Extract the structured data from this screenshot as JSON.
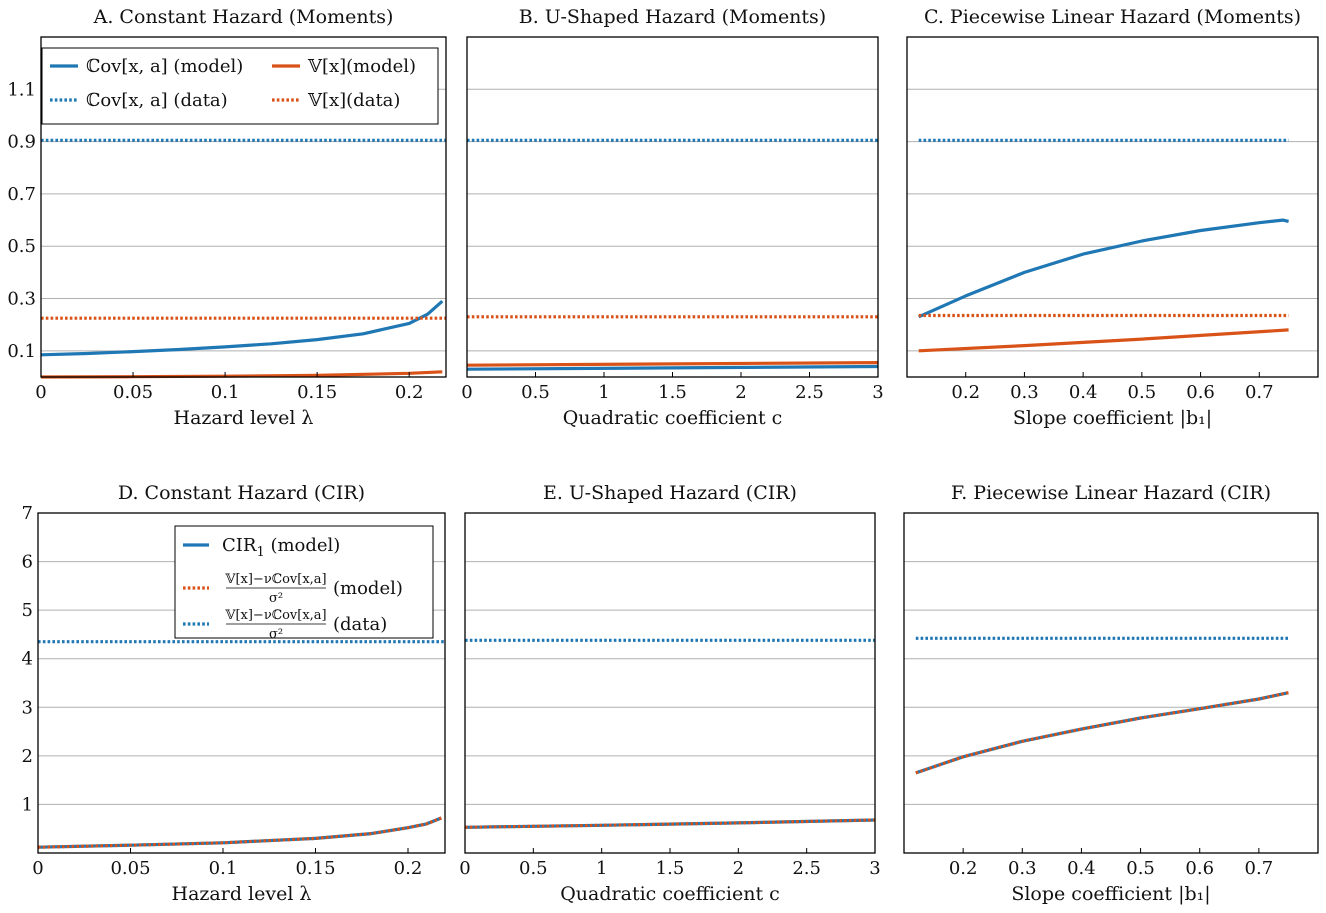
{
  "colors": {
    "blue": "#1f77b4",
    "orange": "#d95319",
    "grid": "#b0b0b0",
    "frame": "#000000"
  },
  "legend_top": [
    {
      "label": "ℂov[x, a] (model)",
      "style": "solid",
      "color": "#1f77b4"
    },
    {
      "label": "𝕍[x](model)",
      "style": "solid",
      "color": "#d95319"
    },
    {
      "label": "ℂov[x, a] (data)",
      "style": "dotted",
      "color": "#1f77b4"
    },
    {
      "label": "𝕍[x](data)",
      "style": "dotted",
      "color": "#d95319"
    }
  ],
  "legend_bottom": [
    {
      "label": "CIR",
      "sub": "1",
      "suffix": " (model)",
      "style": "solid",
      "color": "#1f77b4"
    },
    {
      "numerator": "𝕍[x]−νℂov[x,a]",
      "denominator": "σ²",
      "suffix": "(model)",
      "style": "dotted",
      "color": "#d95319"
    },
    {
      "numerator": "𝕍[x]−νℂov[x,a]",
      "denominator": "σ²",
      "suffix": "(data)",
      "style": "dotted",
      "color": "#1f77b4"
    }
  ],
  "chart_data": [
    {
      "id": "A",
      "type": "line",
      "title": "A. Constant Hazard (Moments)",
      "xlabel": "Hazard level λ",
      "xlim": [
        0,
        0.22
      ],
      "ylim": [
        0,
        1.3
      ],
      "xticks": [
        0,
        0.05,
        0.1,
        0.15,
        0.2
      ],
      "xtick_labels": [
        "0",
        "0.05",
        "0.1",
        "0.15",
        "0.2"
      ],
      "yticks": [
        0.1,
        0.3,
        0.5,
        0.7,
        0.9,
        1.1
      ],
      "ytick_labels": [
        "0.1",
        "0.3",
        "0.5",
        "0.7",
        "0.9",
        "1.1"
      ],
      "grid": true,
      "legend": "legend_top",
      "series": [
        {
          "name": "ℂov[x, a] (model)",
          "style": "solid",
          "color": "#1f77b4",
          "x": [
            0,
            0.025,
            0.05,
            0.075,
            0.1,
            0.125,
            0.15,
            0.175,
            0.2,
            0.21,
            0.218
          ],
          "y": [
            0.085,
            0.09,
            0.097,
            0.105,
            0.115,
            0.127,
            0.143,
            0.165,
            0.205,
            0.24,
            0.29
          ]
        },
        {
          "name": "𝕍[x](model)",
          "style": "solid",
          "color": "#d95319",
          "x": [
            0,
            0.05,
            0.1,
            0.15,
            0.2,
            0.218
          ],
          "y": [
            0.0,
            0.001,
            0.003,
            0.006,
            0.014,
            0.02
          ]
        },
        {
          "name": "ℂov[x, a] (data)",
          "style": "dotted",
          "color": "#1f77b4",
          "x": [
            0,
            0.22
          ],
          "y": [
            0.905,
            0.905
          ]
        },
        {
          "name": "𝕍[x](data)",
          "style": "dotted",
          "color": "#d95319",
          "x": [
            0,
            0.22
          ],
          "y": [
            0.225,
            0.225
          ]
        }
      ]
    },
    {
      "id": "B",
      "type": "line",
      "title": "B. U-Shaped Hazard (Moments)",
      "xlabel": "Quadratic coefficient c",
      "xlim": [
        0,
        3
      ],
      "ylim": [
        0,
        1.3
      ],
      "xticks": [
        0,
        0.5,
        1,
        1.5,
        2,
        2.5,
        3
      ],
      "xtick_labels": [
        "0",
        "0.5",
        "1",
        "1.5",
        "2",
        "2.5",
        "3"
      ],
      "yticks": [
        0.1,
        0.3,
        0.5,
        0.7,
        0.9,
        1.1
      ],
      "ytick_labels": [],
      "grid": true,
      "legend": null,
      "series": [
        {
          "name": "ℂov[x, a] (model)",
          "style": "solid",
          "color": "#1f77b4",
          "x": [
            0,
            3
          ],
          "y": [
            0.03,
            0.04
          ]
        },
        {
          "name": "𝕍[x](model)",
          "style": "solid",
          "color": "#d95319",
          "x": [
            0,
            3
          ],
          "y": [
            0.045,
            0.055
          ]
        },
        {
          "name": "ℂov[x, a] (data)",
          "style": "dotted",
          "color": "#1f77b4",
          "x": [
            0,
            3
          ],
          "y": [
            0.905,
            0.905
          ]
        },
        {
          "name": "𝕍[x](data)",
          "style": "dotted",
          "color": "#d95319",
          "x": [
            0,
            3
          ],
          "y": [
            0.23,
            0.23
          ]
        }
      ]
    },
    {
      "id": "C",
      "type": "line",
      "title": "C. Piecewise Linear Hazard (Moments)",
      "xlabel": "Slope coefficient |b₁|",
      "xlim": [
        0.1,
        0.8
      ],
      "ylim": [
        0,
        1.3
      ],
      "xticks": [
        0.2,
        0.3,
        0.4,
        0.5,
        0.6,
        0.7
      ],
      "xtick_labels": [
        "0.2",
        "0.3",
        "0.4",
        "0.5",
        "0.6",
        "0.7"
      ],
      "yticks": [
        0.1,
        0.3,
        0.5,
        0.7,
        0.9,
        1.1
      ],
      "ytick_labels": [],
      "grid": true,
      "legend": null,
      "series": [
        {
          "name": "ℂov[x, a] (model)",
          "style": "solid",
          "color": "#1f77b4",
          "x": [
            0.12,
            0.2,
            0.3,
            0.4,
            0.5,
            0.6,
            0.7,
            0.74,
            0.75
          ],
          "y": [
            0.23,
            0.31,
            0.4,
            0.47,
            0.52,
            0.56,
            0.59,
            0.6,
            0.595
          ]
        },
        {
          "name": "𝕍[x](model)",
          "style": "solid",
          "color": "#d95319",
          "x": [
            0.12,
            0.3,
            0.5,
            0.75
          ],
          "y": [
            0.1,
            0.12,
            0.145,
            0.18
          ]
        },
        {
          "name": "ℂov[x, a] (data)",
          "style": "dotted",
          "color": "#1f77b4",
          "x": [
            0.12,
            0.75
          ],
          "y": [
            0.905,
            0.905
          ]
        },
        {
          "name": "𝕍[x](data)",
          "style": "dotted",
          "color": "#d95319",
          "x": [
            0.12,
            0.75
          ],
          "y": [
            0.235,
            0.235
          ]
        }
      ]
    },
    {
      "id": "D",
      "type": "line",
      "title": "D. Constant Hazard (CIR)",
      "xlabel": "Hazard level λ",
      "xlim": [
        0,
        0.22
      ],
      "ylim": [
        0,
        7
      ],
      "xticks": [
        0,
        0.05,
        0.1,
        0.15,
        0.2
      ],
      "xtick_labels": [
        "0",
        "0.05",
        "0.1",
        "0.15",
        "0.2"
      ],
      "yticks": [
        1,
        2,
        3,
        4,
        5,
        6,
        7
      ],
      "ytick_labels": [
        "1",
        "2",
        "3",
        "4",
        "5",
        "6",
        "7"
      ],
      "grid": true,
      "legend": "legend_bottom",
      "series": [
        {
          "name": "CIR₁ (model)",
          "style": "solid",
          "color": "#1f77b4",
          "x": [
            0,
            0.05,
            0.1,
            0.15,
            0.18,
            0.2,
            0.21,
            0.218
          ],
          "y": [
            0.12,
            0.16,
            0.21,
            0.3,
            0.4,
            0.52,
            0.6,
            0.72
          ]
        },
        {
          "name": "(𝕍[x]−νℂov[x,a])/σ² (model)",
          "style": "dotted",
          "color": "#d95319",
          "x": [
            0,
            0.05,
            0.1,
            0.15,
            0.18,
            0.2,
            0.21,
            0.218
          ],
          "y": [
            0.12,
            0.16,
            0.21,
            0.3,
            0.4,
            0.52,
            0.6,
            0.72
          ]
        },
        {
          "name": "(𝕍[x]−νℂov[x,a])/σ² (data)",
          "style": "dotted",
          "color": "#1f77b4",
          "x": [
            0,
            0.22
          ],
          "y": [
            4.35,
            4.35
          ]
        }
      ]
    },
    {
      "id": "E",
      "type": "line",
      "title": "E. U-Shaped Hazard (CIR)",
      "xlabel": "Quadratic coefficient c",
      "xlim": [
        0,
        3
      ],
      "ylim": [
        0,
        7
      ],
      "xticks": [
        0,
        0.5,
        1,
        1.5,
        2,
        2.5,
        3
      ],
      "xtick_labels": [
        "0",
        "0.5",
        "1",
        "1.5",
        "2",
        "2.5",
        "3"
      ],
      "yticks": [
        1,
        2,
        3,
        4,
        5,
        6,
        7
      ],
      "ytick_labels": [],
      "grid": true,
      "legend": null,
      "series": [
        {
          "name": "CIR₁ (model)",
          "style": "solid",
          "color": "#1f77b4",
          "x": [
            0,
            1,
            2,
            3
          ],
          "y": [
            0.53,
            0.57,
            0.62,
            0.68
          ]
        },
        {
          "name": "(𝕍[x]−νℂov[x,a])/σ² (model)",
          "style": "dotted",
          "color": "#d95319",
          "x": [
            0,
            1,
            2,
            3
          ],
          "y": [
            0.53,
            0.57,
            0.62,
            0.68
          ]
        },
        {
          "name": "(𝕍[x]−νℂov[x,a])/σ² (data)",
          "style": "dotted",
          "color": "#1f77b4",
          "x": [
            0,
            3
          ],
          "y": [
            4.38,
            4.38
          ]
        }
      ]
    },
    {
      "id": "F",
      "type": "line",
      "title": "F. Piecewise Linear Hazard (CIR)",
      "xlabel": "Slope coefficient |b₁|",
      "xlim": [
        0.1,
        0.8
      ],
      "ylim": [
        0,
        7
      ],
      "xticks": [
        0.2,
        0.3,
        0.4,
        0.5,
        0.6,
        0.7
      ],
      "xtick_labels": [
        "0.2",
        "0.3",
        "0.4",
        "0.5",
        "0.6",
        "0.7"
      ],
      "yticks": [
        1,
        2,
        3,
        4,
        5,
        6,
        7
      ],
      "ytick_labels": [],
      "grid": true,
      "legend": null,
      "series": [
        {
          "name": "CIR₁ (model)",
          "style": "solid",
          "color": "#1f77b4",
          "x": [
            0.12,
            0.2,
            0.3,
            0.4,
            0.5,
            0.6,
            0.7,
            0.75
          ],
          "y": [
            1.65,
            1.98,
            2.3,
            2.55,
            2.78,
            2.97,
            3.17,
            3.3
          ]
        },
        {
          "name": "(𝕍[x]−νℂov[x,a])/σ² (model)",
          "style": "dotted",
          "color": "#d95319",
          "x": [
            0.12,
            0.2,
            0.3,
            0.4,
            0.5,
            0.6,
            0.7,
            0.75
          ],
          "y": [
            1.65,
            1.98,
            2.3,
            2.55,
            2.78,
            2.97,
            3.17,
            3.3
          ]
        },
        {
          "name": "(𝕍[x]−νℂov[x,a])/σ² (data)",
          "style": "dotted",
          "color": "#1f77b4",
          "x": [
            0.12,
            0.75
          ],
          "y": [
            4.42,
            4.42
          ]
        }
      ]
    }
  ]
}
